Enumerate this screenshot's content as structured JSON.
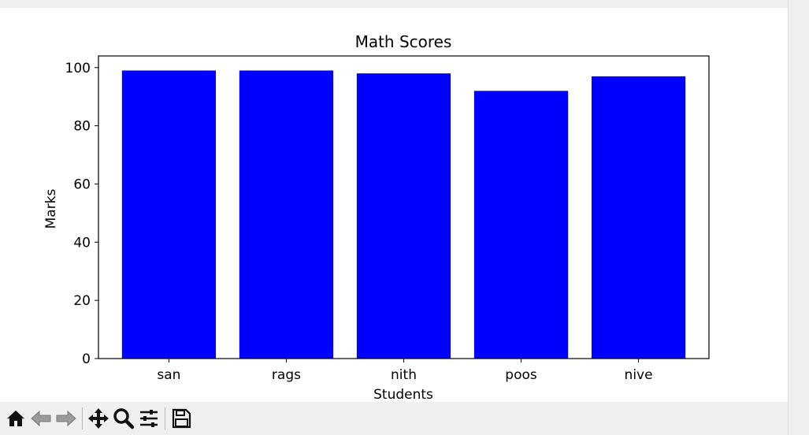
{
  "chart_data": {
    "type": "bar",
    "title": "Math Scores",
    "xlabel": "Students",
    "ylabel": "Marks",
    "categories": [
      "san",
      "rags",
      "nith",
      "poos",
      "nive"
    ],
    "values": [
      99,
      99,
      98,
      92,
      97
    ],
    "ylim": [
      0,
      104
    ],
    "yticks": [
      0,
      20,
      40,
      60,
      80,
      100
    ],
    "bar_color": "#0000ff",
    "grid": false,
    "legend": "none"
  },
  "toolbar": {
    "items": [
      {
        "name": "home-icon",
        "enabled": true
      },
      {
        "name": "back-arrow-icon",
        "enabled": false
      },
      {
        "name": "forward-arrow-icon",
        "enabled": false
      },
      {
        "name": "pan-icon",
        "enabled": true
      },
      {
        "name": "zoom-icon",
        "enabled": true
      },
      {
        "name": "configure-subplots-icon",
        "enabled": true
      },
      {
        "name": "save-icon",
        "enabled": true
      }
    ]
  },
  "colors": {
    "window_bg": "#f0f0f0",
    "canvas_bg": "#ffffff",
    "bar": "#0000ff",
    "axis": "#000000"
  }
}
